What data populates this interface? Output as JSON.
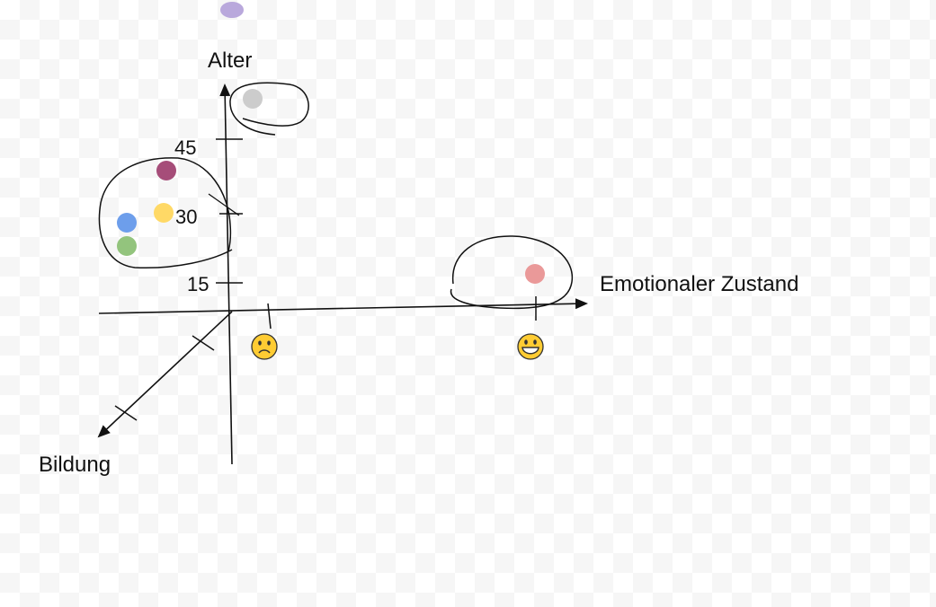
{
  "axes": {
    "vertical_label": "Alter",
    "horizontal_label": "Emotionaler Zustand",
    "depth_label": "Bildung"
  },
  "ticks": {
    "v45": "45",
    "v30": "30",
    "v15": "15"
  },
  "faces": {
    "sad": "🙁",
    "happy": "😀"
  },
  "colors": {
    "stroke": "#111111",
    "dot_purple_top": "#b9a8dc",
    "dot_gray": "#cccccc",
    "dot_maroon": "#a64d79",
    "dot_yellow": "#ffd966",
    "dot_blue": "#6d9eeb",
    "dot_green": "#93c47d",
    "dot_pink": "#ea9999"
  }
}
